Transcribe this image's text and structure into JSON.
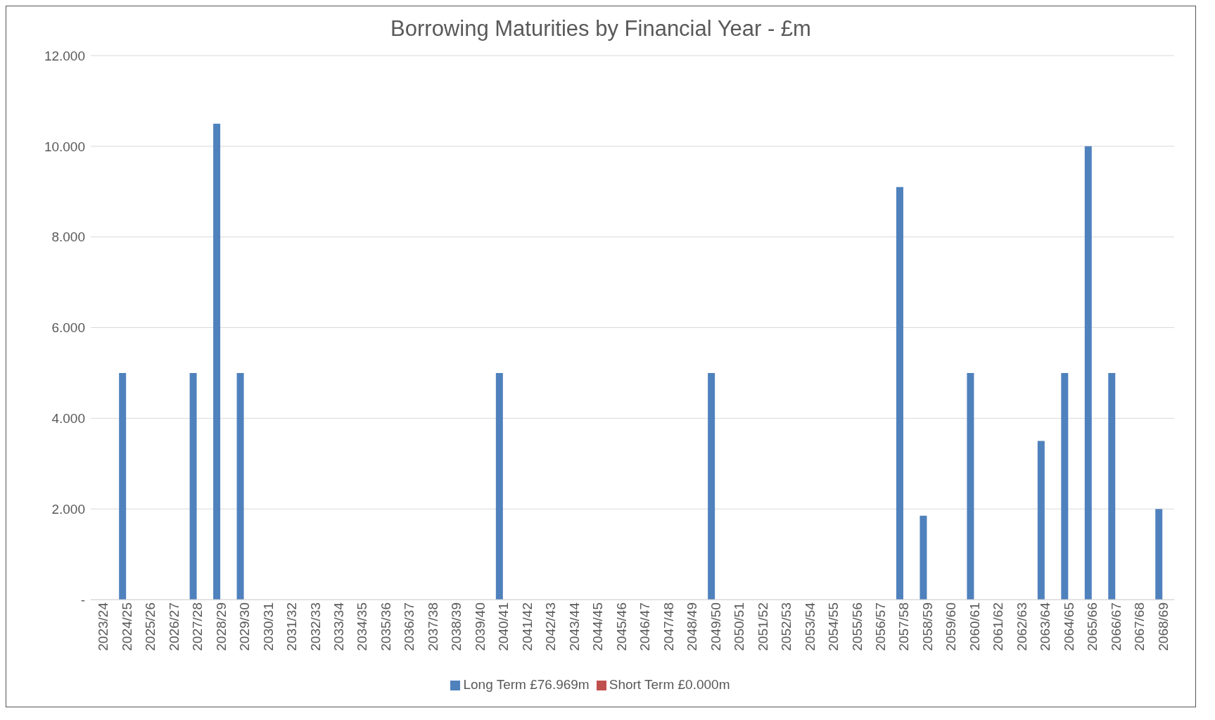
{
  "chart_data": {
    "type": "bar",
    "title": "Borrowing Maturities by Financial Year - £m",
    "categories": [
      "2023/24",
      "2024/25",
      "2025/26",
      "2026/27",
      "2027/28",
      "2028/29",
      "2029/30",
      "2030/31",
      "2031/32",
      "2032/33",
      "2033/34",
      "2034/35",
      "2035/36",
      "2036/37",
      "2037/38",
      "2038/39",
      "2039/40",
      "2040/41",
      "2041/42",
      "2042/43",
      "2043/44",
      "2044/45",
      "2045/46",
      "2046/47",
      "2047/48",
      "2048/49",
      "2049/50",
      "2050/51",
      "2051/52",
      "2052/53",
      "2053/54",
      "2054/55",
      "2055/56",
      "2056/57",
      "2057/58",
      "2058/59",
      "2059/60",
      "2060/61",
      "2061/62",
      "2062/63",
      "2063/64",
      "2064/65",
      "2065/66",
      "2066/67",
      "2067/68",
      "2068/69"
    ],
    "series": [
      {
        "name": "Long Term £76.969m",
        "color": "#4f81bd",
        "values": [
          0,
          5,
          0,
          0,
          5,
          10.5,
          5,
          0,
          0,
          0,
          0,
          0,
          0,
          0,
          0,
          0,
          0,
          5,
          0,
          0,
          0,
          0,
          0,
          0,
          0,
          0,
          5,
          0,
          0,
          0,
          0,
          0,
          0,
          0,
          9.1,
          1.85,
          0,
          5,
          0,
          0,
          3.5,
          5,
          10,
          5,
          0,
          2
        ]
      },
      {
        "name": "Short Term £0.000m",
        "color": "#c0504d",
        "values": [
          0,
          0,
          0,
          0,
          0,
          0,
          0,
          0,
          0,
          0,
          0,
          0,
          0,
          0,
          0,
          0,
          0,
          0,
          0,
          0,
          0,
          0,
          0,
          0,
          0,
          0,
          0,
          0,
          0,
          0,
          0,
          0,
          0,
          0,
          0,
          0,
          0,
          0,
          0,
          0,
          0,
          0,
          0,
          0,
          0,
          0
        ]
      }
    ],
    "ylim": [
      0,
      12
    ],
    "yticks": [
      {
        "value": 0,
        "label": "-"
      },
      {
        "value": 2,
        "label": "2.000"
      },
      {
        "value": 4,
        "label": "4.000"
      },
      {
        "value": 6,
        "label": "6.000"
      },
      {
        "value": 8,
        "label": "8.000"
      },
      {
        "value": 10,
        "label": "10.000"
      },
      {
        "value": 12,
        "label": "12.000"
      }
    ],
    "grid": "y",
    "legend": "bottom"
  }
}
